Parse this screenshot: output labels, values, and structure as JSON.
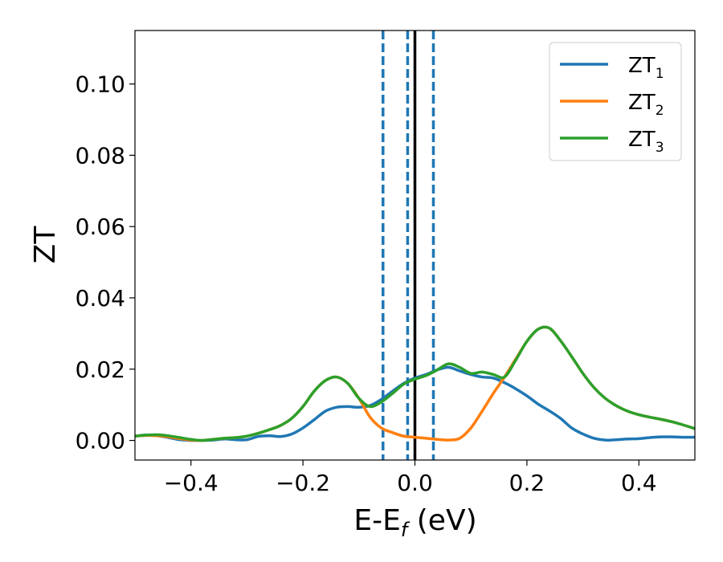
{
  "chart_data": {
    "type": "line",
    "title": "",
    "xlabel": "E-E",
    "xlabel_sub": "f",
    "xlabel_suffix": " (eV)",
    "ylabel": "ZT",
    "xlim": [
      -0.5,
      0.5
    ],
    "ylim": [
      -0.0055,
      0.115
    ],
    "xticks": [
      -0.4,
      -0.2,
      0.0,
      0.2,
      0.4
    ],
    "xtick_labels": [
      "−0.4",
      "−0.2",
      "0.0",
      "0.2",
      "0.4"
    ],
    "yticks": [
      0.0,
      0.02,
      0.04,
      0.06,
      0.08,
      0.1
    ],
    "ytick_labels": [
      "0.00",
      "0.02",
      "0.04",
      "0.06",
      "0.08",
      "0.10"
    ],
    "grid": false,
    "legend_position": "top-right",
    "vlines": [
      {
        "x": -0.057,
        "style": "dashed",
        "color": "#1f77b4"
      },
      {
        "x": -0.013,
        "style": "dashed",
        "color": "#1f77b4"
      },
      {
        "x": 0.033,
        "style": "dashed",
        "color": "#1f77b4"
      },
      {
        "x": 0.0,
        "style": "solid",
        "color": "#000000"
      }
    ],
    "series": [
      {
        "name": "ZT",
        "sub": "1",
        "color": "#1f77b4",
        "x": [
          -0.5,
          -0.48,
          -0.46,
          -0.44,
          -0.42,
          -0.4,
          -0.38,
          -0.36,
          -0.34,
          -0.32,
          -0.3,
          -0.28,
          -0.26,
          -0.24,
          -0.22,
          -0.2,
          -0.18,
          -0.16,
          -0.14,
          -0.12,
          -0.1,
          -0.08,
          -0.06,
          -0.04,
          -0.02,
          0.0,
          0.02,
          0.04,
          0.06,
          0.08,
          0.1,
          0.12,
          0.14,
          0.16,
          0.18,
          0.2,
          0.22,
          0.24,
          0.26,
          0.28,
          0.3,
          0.32,
          0.34,
          0.36,
          0.38,
          0.4,
          0.42,
          0.44,
          0.46,
          0.48,
          0.5
        ],
        "y": [
          0.0012,
          0.0015,
          0.0013,
          0.0008,
          0.0002,
          0.0,
          0.0,
          0.0001,
          0.0004,
          0.0002,
          0.0002,
          0.0011,
          0.0013,
          0.0011,
          0.0018,
          0.0035,
          0.0058,
          0.0082,
          0.0093,
          0.0095,
          0.0093,
          0.0098,
          0.0115,
          0.0138,
          0.016,
          0.0175,
          0.0185,
          0.0198,
          0.0205,
          0.0195,
          0.0185,
          0.0178,
          0.0175,
          0.0162,
          0.0145,
          0.0125,
          0.0102,
          0.0083,
          0.0062,
          0.0035,
          0.0018,
          0.0006,
          0.0001,
          0.0002,
          0.0004,
          0.0005,
          0.0008,
          0.001,
          0.001,
          0.0009,
          0.0009
        ]
      },
      {
        "name": "ZT",
        "sub": "2",
        "color": "#ff7f0e",
        "x": [
          -0.5,
          -0.48,
          -0.46,
          -0.44,
          -0.42,
          -0.4,
          -0.38,
          -0.36,
          -0.34,
          -0.32,
          -0.3,
          -0.28,
          -0.26,
          -0.24,
          -0.22,
          -0.2,
          -0.18,
          -0.16,
          -0.14,
          -0.12,
          -0.1,
          -0.08,
          -0.06,
          -0.04,
          -0.02,
          0.0,
          0.02,
          0.04,
          0.06,
          0.08,
          0.1,
          0.12,
          0.14,
          0.16,
          0.18,
          0.2,
          0.22,
          0.24,
          0.26,
          0.28,
          0.3,
          0.32,
          0.34,
          0.36,
          0.38,
          0.4,
          0.42,
          0.44,
          0.46,
          0.48,
          0.5
        ],
        "y": [
          0.0012,
          0.0014,
          0.0013,
          0.001,
          0.0005,
          0.0001,
          0.0,
          0.0003,
          0.0006,
          0.0008,
          0.0012,
          0.002,
          0.003,
          0.0042,
          0.0062,
          0.0095,
          0.0138,
          0.0168,
          0.0178,
          0.016,
          0.0118,
          0.0065,
          0.0035,
          0.0022,
          0.0012,
          0.0009,
          0.0006,
          0.0003,
          0.0001,
          0.0006,
          0.0035,
          0.0082,
          0.0132,
          0.0178,
          0.0228,
          0.0278,
          0.0312,
          0.0315,
          0.028,
          0.0235,
          0.0188,
          0.0148,
          0.0118,
          0.0097,
          0.0082,
          0.0072,
          0.0065,
          0.0059,
          0.0052,
          0.0043,
          0.0033
        ]
      },
      {
        "name": "ZT",
        "sub": "3",
        "color": "#2ca02c",
        "x": [
          -0.5,
          -0.48,
          -0.46,
          -0.44,
          -0.42,
          -0.4,
          -0.38,
          -0.36,
          -0.34,
          -0.32,
          -0.3,
          -0.28,
          -0.26,
          -0.24,
          -0.22,
          -0.2,
          -0.18,
          -0.16,
          -0.14,
          -0.12,
          -0.1,
          -0.08,
          -0.06,
          -0.04,
          -0.02,
          0.0,
          0.02,
          0.04,
          0.06,
          0.08,
          0.1,
          0.12,
          0.14,
          0.16,
          0.18,
          0.2,
          0.22,
          0.24,
          0.26,
          0.28,
          0.3,
          0.32,
          0.34,
          0.36,
          0.38,
          0.4,
          0.42,
          0.44,
          0.46,
          0.48,
          0.5
        ],
        "y": [
          0.0012,
          0.0015,
          0.0016,
          0.0013,
          0.0008,
          0.0003,
          0.0,
          0.0003,
          0.0006,
          0.0008,
          0.0012,
          0.002,
          0.003,
          0.0042,
          0.0062,
          0.0095,
          0.0138,
          0.0168,
          0.0178,
          0.016,
          0.0118,
          0.0095,
          0.0108,
          0.0132,
          0.0158,
          0.0172,
          0.0182,
          0.0198,
          0.0215,
          0.0205,
          0.0188,
          0.0192,
          0.0185,
          0.0178,
          0.0225,
          0.0278,
          0.0312,
          0.0315,
          0.028,
          0.0235,
          0.0188,
          0.0148,
          0.0118,
          0.0097,
          0.0082,
          0.0072,
          0.0065,
          0.0059,
          0.0052,
          0.0043,
          0.0033
        ]
      }
    ]
  }
}
